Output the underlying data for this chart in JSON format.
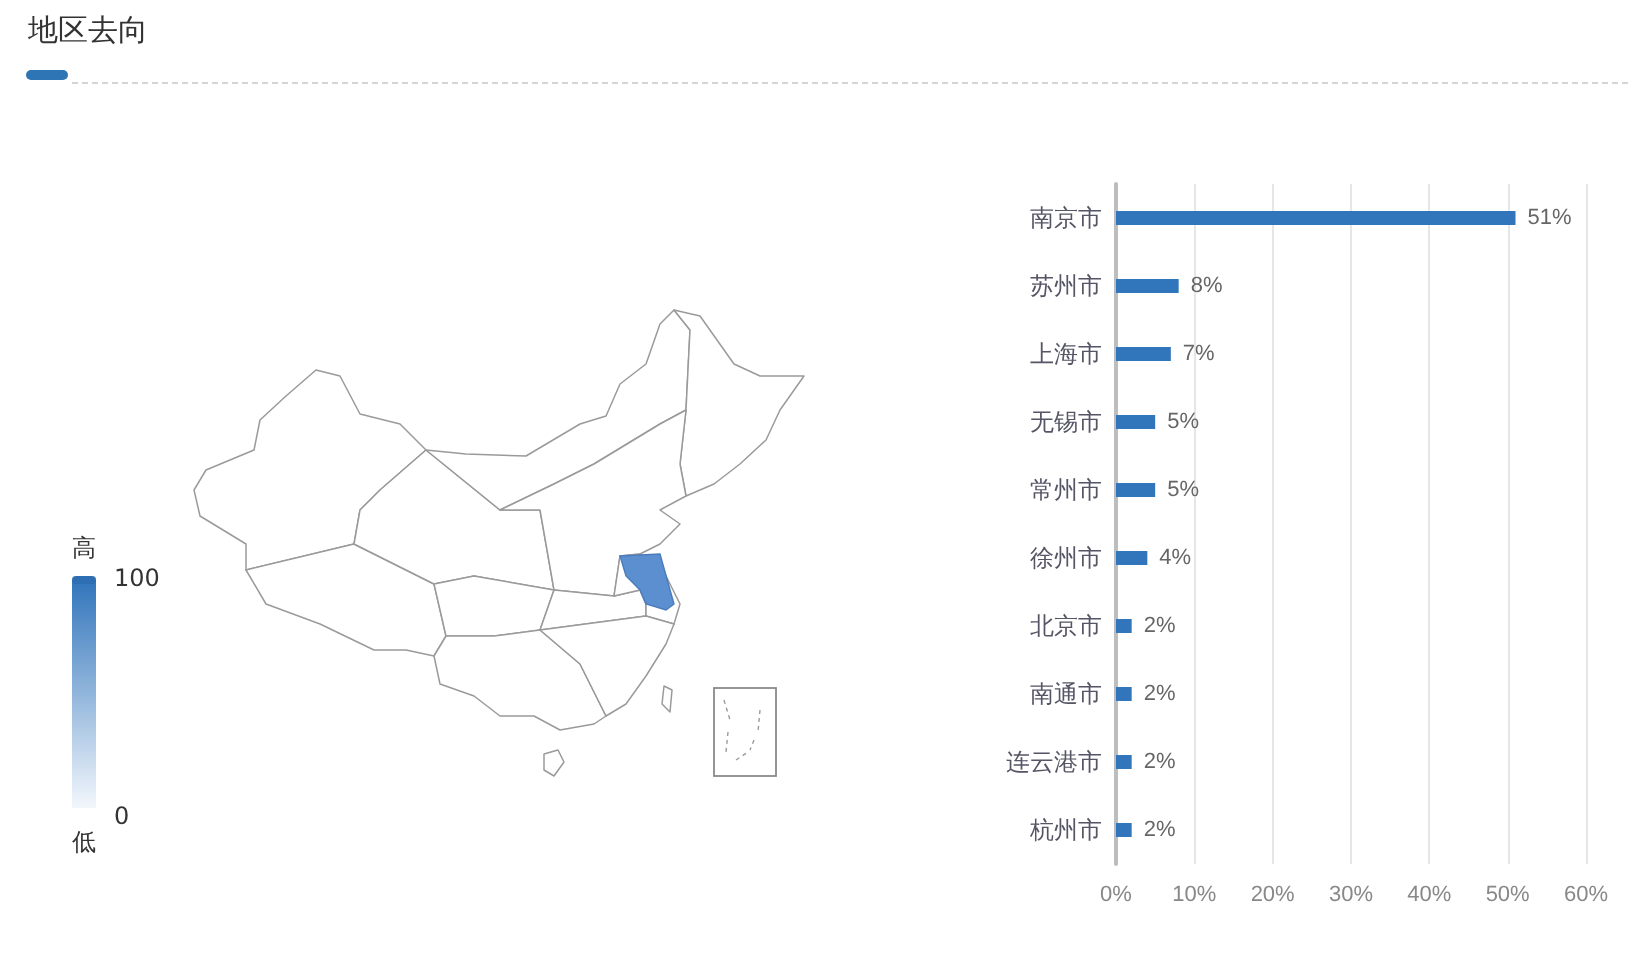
{
  "chart_data": [
    {
      "type": "other",
      "title": "地区去向",
      "annotations": [
        "高",
        "100",
        "0",
        "低"
      ]
    },
    {
      "type": "bar",
      "orientation": "horizontal",
      "categories": [
        "南京市",
        "苏州市",
        "上海市",
        "无锡市",
        "常州市",
        "徐州市",
        "北京市",
        "南通市",
        "连云港市",
        "杭州市"
      ],
      "values": [
        51,
        8,
        7,
        5,
        5,
        4,
        2,
        2,
        2,
        2
      ],
      "color": "#3175bb",
      "value_labels": [
        "51%",
        "8%",
        "7%",
        "5%",
        "5%",
        "4%",
        "2%",
        "2%",
        "2%",
        "2%"
      ],
      "xlim": [
        0,
        60
      ],
      "xticks": [
        {
          "value": 0,
          "label": "0%"
        },
        {
          "value": 10,
          "label": "10%"
        },
        {
          "value": 20,
          "label": "20%"
        },
        {
          "value": 30,
          "label": "30%"
        },
        {
          "value": 40,
          "label": "40%"
        },
        {
          "value": 50,
          "label": "50%"
        },
        {
          "value": 60,
          "label": "60%"
        }
      ],
      "grid": "x"
    }
  ]
}
